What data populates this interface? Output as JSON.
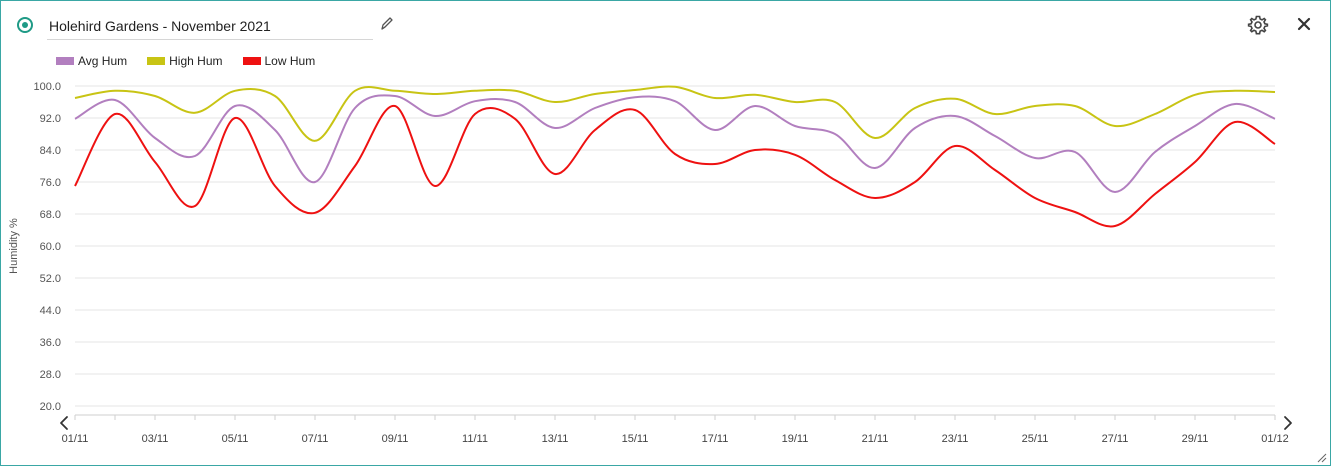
{
  "header": {
    "title": "Holehird Gardens - November 2021"
  },
  "colors": {
    "accent": "#1f9a86",
    "border": "#3aa7a5"
  },
  "icons": {
    "status": "status-dot-icon",
    "edit": "pencil-icon",
    "settings": "gear-icon",
    "close": "close-icon",
    "prev": "chevron-left-icon",
    "next": "chevron-right-icon",
    "resize": "resize-grip-icon"
  },
  "chart_data": {
    "type": "line",
    "ylabel": "Humidity %",
    "xlabel": "",
    "ylim": [
      20,
      100
    ],
    "yticks": [
      "100.0",
      "92.0",
      "84.0",
      "76.0",
      "68.0",
      "60.0",
      "52.0",
      "44.0",
      "36.0",
      "28.0",
      "20.0"
    ],
    "xticks": [
      "01/11",
      "03/11",
      "05/11",
      "07/11",
      "09/11",
      "11/11",
      "13/11",
      "15/11",
      "17/11",
      "19/11",
      "21/11",
      "23/11",
      "25/11",
      "27/11",
      "29/11",
      "01/12"
    ],
    "grid": true,
    "legend_position": "top-left",
    "x": [
      "01/11",
      "02/11",
      "03/11",
      "04/11",
      "05/11",
      "06/11",
      "07/11",
      "08/11",
      "09/11",
      "10/11",
      "11/11",
      "12/11",
      "13/11",
      "14/11",
      "15/11",
      "16/11",
      "17/11",
      "18/11",
      "19/11",
      "20/11",
      "21/11",
      "22/11",
      "23/11",
      "24/11",
      "25/11",
      "26/11",
      "27/11",
      "28/11",
      "29/11",
      "30/11",
      "01/12"
    ],
    "series": [
      {
        "name": "Avg Hum",
        "color": "#b27fbf",
        "values": [
          91.8,
          96.5,
          87.0,
          82.5,
          95.0,
          89.0,
          76.0,
          94.5,
          97.5,
          92.5,
          96.2,
          96.0,
          89.5,
          94.5,
          97.2,
          96.2,
          89.0,
          95.0,
          90.0,
          88.0,
          79.5,
          89.5,
          92.5,
          87.5,
          82.0,
          83.5,
          73.5,
          83.5,
          90.0,
          95.5,
          91.8
        ]
      },
      {
        "name": "High Hum",
        "color": "#c8c414",
        "values": [
          97.0,
          98.8,
          97.5,
          93.3,
          98.8,
          97.5,
          86.3,
          98.8,
          98.8,
          98.0,
          98.8,
          98.8,
          96.0,
          98.0,
          99.0,
          99.8,
          97.0,
          97.8,
          96.0,
          96.0,
          87.0,
          94.5,
          96.8,
          93.0,
          95.0,
          95.0,
          90.0,
          93.0,
          97.8,
          98.8,
          98.5
        ]
      },
      {
        "name": "Low Hum",
        "color": "#ee1111",
        "values": [
          75.0,
          93.0,
          81.0,
          70.0,
          92.0,
          75.0,
          68.3,
          80.0,
          95.0,
          75.0,
          93.0,
          91.8,
          78.0,
          89.0,
          94.0,
          83.0,
          80.5,
          84.0,
          82.8,
          76.5,
          72.0,
          76.0,
          85.0,
          79.0,
          72.0,
          68.5,
          65.0,
          73.0,
          81.0,
          91.0,
          85.5
        ]
      }
    ]
  }
}
